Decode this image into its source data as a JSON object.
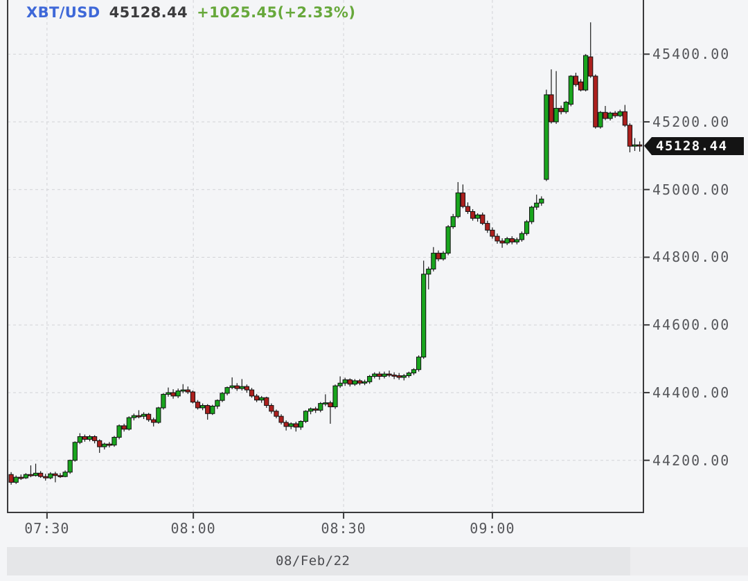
{
  "header": {
    "symbol": "XBT/USD",
    "price": "45128.44",
    "change": "+1025.45(+2.33%)"
  },
  "axis": {
    "last_price_label": "45128.44"
  },
  "footer": {
    "date": "08/Feb/22"
  },
  "colors": {
    "up": "#19a51e",
    "down": "#ac201e",
    "wick": "#1a1a1a",
    "candle_border": "#101010",
    "grid": "#d2d3d7",
    "axis_line": "#3a3a3c",
    "symbol_blue": "#3e68d8",
    "change_green": "#67a83b",
    "badge_bg": "#141414"
  },
  "chart_data": {
    "type": "candlestick",
    "symbol": "XBT/USD",
    "title": "XBT/USD 45128.44 +1025.45(+2.33%)",
    "date": "08/Feb/22",
    "interval_minutes": 1,
    "last_price": 45128.44,
    "change_abs": 1025.45,
    "change_pct": 2.33,
    "grid": true,
    "ylim": [
      44048,
      45560
    ],
    "y_ticks": [
      {
        "label": "45400.00",
        "value": 45400
      },
      {
        "label": "45200.00",
        "value": 45200
      },
      {
        "label": "45000.00",
        "value": 45000
      },
      {
        "label": "44800.00",
        "value": 44800
      },
      {
        "label": "44600.00",
        "value": 44600
      },
      {
        "label": "44400.00",
        "value": 44400
      },
      {
        "label": "44200.00",
        "value": 44200
      }
    ],
    "x_ticks": [
      {
        "label": "07:30",
        "idx": 7.3
      },
      {
        "label": "08:00",
        "idx": 37.1
      },
      {
        "label": "08:30",
        "idx": 67.7
      },
      {
        "label": "09:00",
        "idx": 98.0
      }
    ],
    "candles": [
      [
        44158,
        44165,
        44128,
        44135
      ],
      [
        44135,
        44155,
        44130,
        44150
      ],
      [
        44150,
        44158,
        44142,
        44148
      ],
      [
        44148,
        44162,
        44145,
        44158
      ],
      [
        44158,
        44185,
        44150,
        44155
      ],
      [
        44155,
        44190,
        44152,
        44162
      ],
      [
        44162,
        44168,
        44148,
        44152
      ],
      [
        44152,
        44160,
        44140,
        44148
      ],
      [
        44148,
        44165,
        44144,
        44160
      ],
      [
        44160,
        44166,
        44135,
        44155
      ],
      [
        44155,
        44162,
        44148,
        44152
      ],
      [
        44152,
        44170,
        44150,
        44165
      ],
      [
        44165,
        44202,
        44160,
        44200
      ],
      [
        44200,
        44256,
        44196,
        44253
      ],
      [
        44253,
        44280,
        44248,
        44270
      ],
      [
        44270,
        44276,
        44255,
        44262
      ],
      [
        44262,
        44275,
        44256,
        44270
      ],
      [
        44270,
        44274,
        44250,
        44258
      ],
      [
        44258,
        44262,
        44222,
        44240
      ],
      [
        44240,
        44252,
        44232,
        44248
      ],
      [
        44248,
        44254,
        44238,
        44245
      ],
      [
        44245,
        44272,
        44240,
        44268
      ],
      [
        44268,
        44306,
        44262,
        44302
      ],
      [
        44302,
        44308,
        44285,
        44292
      ],
      [
        44292,
        44330,
        44288,
        44326
      ],
      [
        44326,
        44338,
        44318,
        44332
      ],
      [
        44332,
        44348,
        44324,
        44330
      ],
      [
        44330,
        44342,
        44322,
        44336
      ],
      [
        44336,
        44340,
        44314,
        44320
      ],
      [
        44320,
        44326,
        44300,
        44312
      ],
      [
        44312,
        44358,
        44308,
        44355
      ],
      [
        44355,
        44398,
        44350,
        44395
      ],
      [
        44395,
        44415,
        44388,
        44400
      ],
      [
        44400,
        44410,
        44382,
        44390
      ],
      [
        44390,
        44412,
        44384,
        44405
      ],
      [
        44405,
        44425,
        44398,
        44408
      ],
      [
        44408,
        44418,
        44396,
        44402
      ],
      [
        44402,
        44406,
        44368,
        44372
      ],
      [
        44372,
        44378,
        44350,
        44355
      ],
      [
        44355,
        44368,
        44348,
        44362
      ],
      [
        44362,
        44366,
        44320,
        44338
      ],
      [
        44338,
        44364,
        44334,
        44360
      ],
      [
        44360,
        44380,
        44352,
        44377
      ],
      [
        44377,
        44402,
        44372,
        44398
      ],
      [
        44398,
        44418,
        44392,
        44415
      ],
      [
        44415,
        44445,
        44410,
        44420
      ],
      [
        44420,
        44428,
        44405,
        44412
      ],
      [
        44412,
        44440,
        44406,
        44418
      ],
      [
        44418,
        44424,
        44400,
        44408
      ],
      [
        44408,
        44414,
        44385,
        44390
      ],
      [
        44390,
        44396,
        44372,
        44378
      ],
      [
        44378,
        44390,
        44370,
        44385
      ],
      [
        44385,
        44388,
        44355,
        44362
      ],
      [
        44362,
        44368,
        44338,
        44345
      ],
      [
        44345,
        44350,
        44324,
        44330
      ],
      [
        44330,
        44336,
        44306,
        44312
      ],
      [
        44312,
        44318,
        44288,
        44300
      ],
      [
        44300,
        44312,
        44292,
        44308
      ],
      [
        44308,
        44314,
        44285,
        44298
      ],
      [
        44298,
        44318,
        44290,
        44315
      ],
      [
        44315,
        44348,
        44310,
        44345
      ],
      [
        44345,
        44356,
        44336,
        44352
      ],
      [
        44352,
        44358,
        44340,
        44348
      ],
      [
        44348,
        44372,
        44342,
        44368
      ],
      [
        44368,
        44395,
        44360,
        44370
      ],
      [
        44370,
        44376,
        44308,
        44358
      ],
      [
        44358,
        44424,
        44352,
        44420
      ],
      [
        44420,
        44448,
        44414,
        44428
      ],
      [
        44428,
        44444,
        44420,
        44438
      ],
      [
        44438,
        44442,
        44418,
        44425
      ],
      [
        44425,
        44440,
        44420,
        44435
      ],
      [
        44435,
        44440,
        44422,
        44428
      ],
      [
        44428,
        44438,
        44422,
        44432
      ],
      [
        44432,
        44452,
        44426,
        44448
      ],
      [
        44448,
        44460,
        44442,
        44455
      ],
      [
        44455,
        44462,
        44438,
        44448
      ],
      [
        44448,
        44462,
        44442,
        44455
      ],
      [
        44455,
        44465,
        44446,
        44452
      ],
      [
        44452,
        44460,
        44440,
        44450
      ],
      [
        44450,
        44458,
        44438,
        44445
      ],
      [
        44445,
        44455,
        44436,
        44450
      ],
      [
        44450,
        44462,
        44444,
        44458
      ],
      [
        44458,
        44472,
        44452,
        44468
      ],
      [
        44468,
        44510,
        44462,
        44505
      ],
      [
        44505,
        44790,
        44500,
        44750
      ],
      [
        44750,
        44772,
        44705,
        44765
      ],
      [
        44765,
        44830,
        44758,
        44812
      ],
      [
        44812,
        44820,
        44788,
        44795
      ],
      [
        44795,
        44818,
        44790,
        44812
      ],
      [
        44812,
        44895,
        44806,
        44890
      ],
      [
        44890,
        44928,
        44884,
        44920
      ],
      [
        44920,
        45022,
        44915,
        44990
      ],
      [
        44990,
        45015,
        44945,
        44950
      ],
      [
        44950,
        44962,
        44928,
        44935
      ],
      [
        44935,
        44942,
        44908,
        44915
      ],
      [
        44915,
        44930,
        44905,
        44925
      ],
      [
        44925,
        44932,
        44895,
        44900
      ],
      [
        44900,
        44908,
        44872,
        44880
      ],
      [
        44880,
        44888,
        44855,
        44862
      ],
      [
        44862,
        44870,
        44840,
        44848
      ],
      [
        44848,
        44856,
        44828,
        44842
      ],
      [
        44842,
        44860,
        44836,
        44855
      ],
      [
        44855,
        44862,
        44838,
        44845
      ],
      [
        44845,
        44858,
        44838,
        44852
      ],
      [
        44852,
        44876,
        44846,
        44870
      ],
      [
        44870,
        44910,
        44864,
        44905
      ],
      [
        44905,
        44952,
        44898,
        44948
      ],
      [
        44948,
        44985,
        44940,
        44960
      ],
      [
        44960,
        44980,
        44952,
        44972
      ],
      [
        45030,
        45295,
        45025,
        45280
      ],
      [
        45280,
        45355,
        45195,
        45200
      ],
      [
        45200,
        45350,
        45194,
        45240
      ],
      [
        45240,
        45248,
        45222,
        45230
      ],
      [
        45230,
        45262,
        45224,
        45258
      ],
      [
        45252,
        45338,
        45246,
        45335
      ],
      [
        45335,
        45345,
        45304,
        45310
      ],
      [
        45318,
        45326,
        45290,
        45294
      ],
      [
        45294,
        45400,
        45290,
        45396
      ],
      [
        45392,
        45494,
        45330,
        45335
      ],
      [
        45335,
        45340,
        45180,
        45185
      ],
      [
        45185,
        45232,
        45180,
        45228
      ],
      [
        45228,
        45247,
        45205,
        45210
      ],
      [
        45210,
        45230,
        45204,
        45226
      ],
      [
        45226,
        45232,
        45212,
        45218
      ],
      [
        45218,
        45236,
        45214,
        45230
      ],
      [
        45230,
        45250,
        45185,
        45190
      ],
      [
        45190,
        45196,
        45110,
        45128
      ],
      [
        45128,
        45152,
        45114,
        45132
      ],
      [
        45132,
        45142,
        45112,
        45128.44
      ]
    ]
  }
}
